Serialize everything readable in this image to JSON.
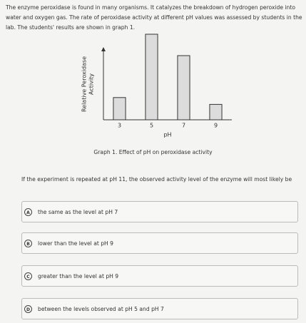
{
  "passage": "The enzyme peroxidase is found in many organisms. It catalyzes the breakdown of hydrogen peroxide into water and oxygen gas. The rate of peroxidase activity at different pH values was assessed by students in the lab. The students' results are shown in graph 1.",
  "chart_data": {
    "type": "bar",
    "caption": "Graph 1. Effect of pH on peroxidase activity",
    "xlabel": "pH",
    "ylabel_lines": [
      "Relative Peroxidase",
      "Activity"
    ],
    "categories": [
      "3",
      "5",
      "7",
      "9"
    ],
    "values": [
      2.6,
      10,
      7.5,
      1.8
    ],
    "color": "#dcdcdc",
    "ylim": [
      0,
      10
    ]
  },
  "question": "If the experiment is repeated at pH 11, the observed activity level of the enzyme will most likely be",
  "options": [
    {
      "letter": "A",
      "text": "the same as the level at pH 7"
    },
    {
      "letter": "B",
      "text": "lower than the level at pH 9"
    },
    {
      "letter": "C",
      "text": "greater than the level at pH 9"
    },
    {
      "letter": "D",
      "text": "between the levels observed at pH 5 and pH 7"
    }
  ]
}
